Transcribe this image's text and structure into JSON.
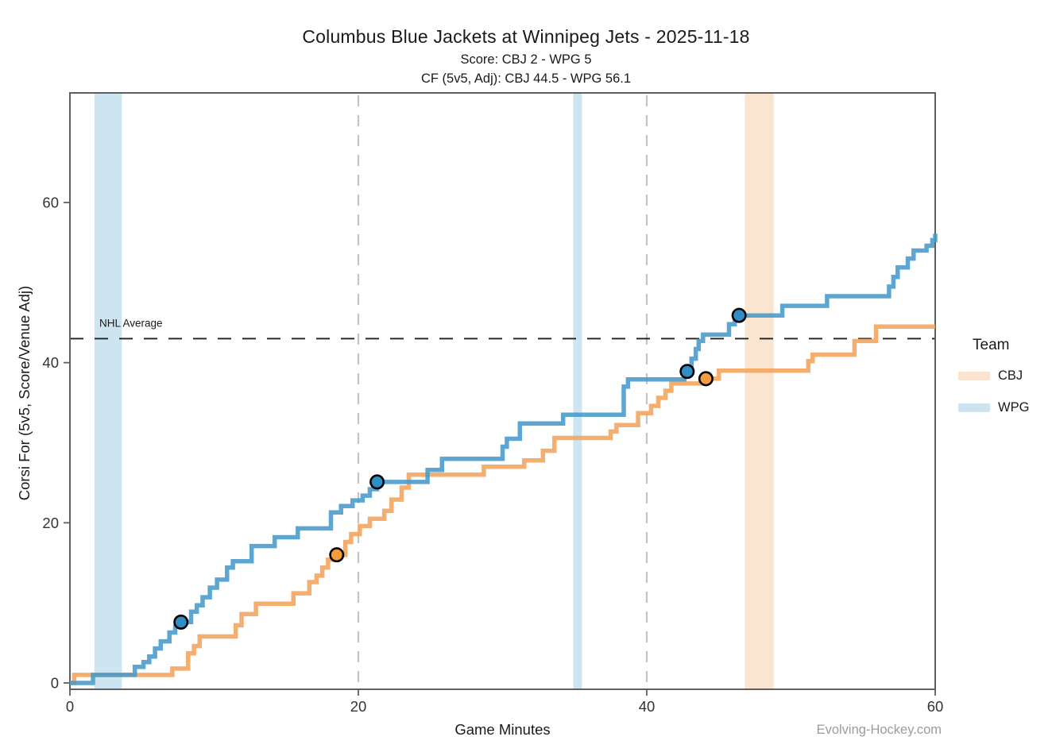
{
  "header": {
    "title": "Columbus Blue Jackets at Winnipeg Jets - 2025-11-18",
    "subtitle_score": "Score: CBJ 2 - WPG 5",
    "subtitle_cf": "CF (5v5, Adj): CBJ 44.5 - WPG 56.1"
  },
  "axes": {
    "x_label": "Game Minutes",
    "y_label": "Corsi For (5v5, Score/Venue Adj)",
    "x_ticks": [
      0,
      20,
      40,
      60
    ],
    "y_ticks": [
      0,
      20,
      40,
      60
    ]
  },
  "annotations": {
    "nhl_average_label": "NHL Average",
    "nhl_average_value": 43,
    "period_lines": [
      20,
      40
    ]
  },
  "legend": {
    "title": "Team",
    "entries": [
      {
        "label": "CBJ",
        "color": "#FAE3CF"
      },
      {
        "label": "WPG",
        "color": "#CDE4F0"
      }
    ]
  },
  "watermark": "Evolving-Hockey.com",
  "colors": {
    "cbj": "#F3A45C",
    "wpg": "#459ACB",
    "cbj_band": "#FAE5D1",
    "wpg_band": "#CCE5F1",
    "cbj_goal": "#F49C40",
    "wpg_goal": "#2F8FC5",
    "nhl_line": "#1f1f1f",
    "period_line": "#c4c4c4",
    "spine": "#5f5f5f",
    "tick_text": "#333333",
    "text": "#1a1a1a"
  },
  "chart_data": {
    "type": "line",
    "step": true,
    "title": "Columbus Blue Jackets at Winnipeg Jets - 2025-11-18",
    "xlabel": "Game Minutes",
    "ylabel": "Corsi For (5v5, Score/Venue Adj)",
    "xlim": [
      0,
      60
    ],
    "ylim": [
      -0.8,
      73.7
    ],
    "grid": false,
    "legend_position": "right",
    "series": [
      {
        "name": "CBJ",
        "final_value": 44.5,
        "x": [
          0,
          0.3,
          7.1,
          8.2,
          8.6,
          9.0,
          11.5,
          11.9,
          12.9,
          15.5,
          16.6,
          17.1,
          17.5,
          17.9,
          18.5,
          19.1,
          19.5,
          20.1,
          20.8,
          21.8,
          22.3,
          23.0,
          23.5,
          28.7,
          31.5,
          32.8,
          33.6,
          37.5,
          37.9,
          39.4,
          40.3,
          40.8,
          41.3,
          41.7,
          44.1,
          45.0,
          51.2,
          51.5,
          54.4,
          55.9,
          60
        ],
        "y": [
          0,
          1,
          1.8,
          3.7,
          4.6,
          5.8,
          7.2,
          8.6,
          9.9,
          11.2,
          12.6,
          13.4,
          14.4,
          15.4,
          16.0,
          17.6,
          18.6,
          19.6,
          20.5,
          21.5,
          22.9,
          24.4,
          26.0,
          27.0,
          27.8,
          29.0,
          30.6,
          31.4,
          32.2,
          33.7,
          34.6,
          35.6,
          36.5,
          37.4,
          38.0,
          39.0,
          40.2,
          41.0,
          42.7,
          44.5,
          44.5
        ]
      },
      {
        "name": "WPG",
        "final_value": 56.1,
        "x": [
          0,
          1.6,
          4.5,
          5.1,
          5.5,
          5.9,
          6.3,
          6.9,
          7.3,
          7.7,
          8.4,
          8.8,
          9.2,
          9.7,
          10.2,
          10.9,
          11.3,
          12.6,
          14.2,
          15.8,
          18.1,
          18.8,
          19.6,
          20.3,
          20.8,
          21.3,
          24.8,
          25.8,
          30.0,
          30.3,
          31.2,
          34.2,
          38.4,
          38.7,
          42.6,
          43.1,
          43.4,
          43.6,
          43.9,
          45.7,
          46.1,
          46.4,
          49.4,
          52.5,
          56.8,
          57.1,
          57.4,
          58.1,
          58.5,
          59.4,
          59.8,
          60
        ],
        "y": [
          0,
          1,
          2,
          2.6,
          3.3,
          4.3,
          5.2,
          6.3,
          7.0,
          7.6,
          8.9,
          9.7,
          10.7,
          11.9,
          12.9,
          14.4,
          15.2,
          17.1,
          18.2,
          19.3,
          21.3,
          22.1,
          22.8,
          23.4,
          24.2,
          25.1,
          26.6,
          28.0,
          29.5,
          30.5,
          32.4,
          33.5,
          37.0,
          37.9,
          38.9,
          40.5,
          41.7,
          42.7,
          43.5,
          44.8,
          45.3,
          45.9,
          47.1,
          48.3,
          49.5,
          50.7,
          51.9,
          53.0,
          54.0,
          54.6,
          55.3,
          56.1
        ]
      }
    ],
    "goals": [
      {
        "team": "WPG",
        "x": 7.7,
        "y": 7.6
      },
      {
        "team": "CBJ",
        "x": 18.5,
        "y": 16.0
      },
      {
        "team": "WPG",
        "x": 21.3,
        "y": 25.1
      },
      {
        "team": "WPG",
        "x": 42.8,
        "y": 38.9
      },
      {
        "team": "CBJ",
        "x": 44.1,
        "y": 38.0
      },
      {
        "team": "WPG",
        "x": 46.4,
        "y": 45.9
      }
    ],
    "shaded_bands": [
      {
        "team": "WPG",
        "x0": 1.7,
        "x1": 3.6
      },
      {
        "team": "WPG",
        "x0": 34.9,
        "x1": 35.5
      },
      {
        "team": "CBJ",
        "x0": 46.8,
        "x1": 48.8
      }
    ]
  }
}
